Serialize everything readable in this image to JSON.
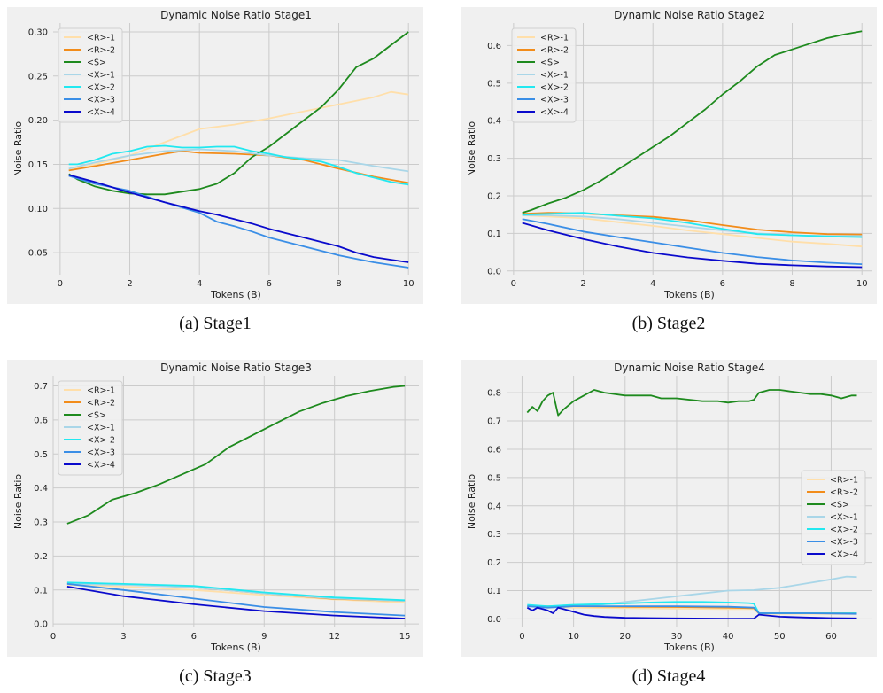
{
  "captions": [
    "(a) Stage1",
    "(b) Stage2",
    "(c) Stage3",
    "(d) Stage4"
  ],
  "series_styles": [
    {
      "name": "<R>-1",
      "color": "#ffdfaa"
    },
    {
      "name": "<R>-2",
      "color": "#f28c1a"
    },
    {
      "name": "<S>",
      "color": "#1e8a1e"
    },
    {
      "name": "<X>-1",
      "color": "#a9d6e8"
    },
    {
      "name": "<X>-2",
      "color": "#22e8f0"
    },
    {
      "name": "<X>-3",
      "color": "#3a8ee6"
    },
    {
      "name": "<X>-4",
      "color": "#0a0acc"
    }
  ],
  "chart_data": [
    {
      "type": "line",
      "title": "Dynamic Noise Ratio Stage1",
      "xlabel": "Tokens (B)",
      "ylabel": "Noise Ratio",
      "xlim": [
        -0.2,
        10.3
      ],
      "ylim": [
        0.025,
        0.31
      ],
      "xticks": [
        0,
        2,
        4,
        6,
        8,
        10
      ],
      "yticks": [
        0.05,
        0.1,
        0.15,
        0.2,
        0.25,
        0.3
      ],
      "ytick_labels": [
        "0.05",
        "0.10",
        "0.15",
        "0.20",
        "0.25",
        "0.30"
      ],
      "grid": true,
      "legend": "top-left",
      "series": [
        {
          "name": "<R>-1",
          "x": [
            0.25,
            1,
            2,
            3,
            4,
            5,
            6,
            7,
            8,
            9,
            9.5,
            10
          ],
          "y": [
            0.143,
            0.15,
            0.16,
            0.175,
            0.19,
            0.195,
            0.202,
            0.21,
            0.218,
            0.226,
            0.232,
            0.229
          ]
        },
        {
          "name": "<R>-2",
          "x": [
            0.25,
            1,
            2,
            3,
            3.5,
            4,
            5,
            6,
            7,
            8,
            9,
            10
          ],
          "y": [
            0.143,
            0.148,
            0.155,
            0.162,
            0.165,
            0.163,
            0.162,
            0.16,
            0.155,
            0.145,
            0.136,
            0.129
          ]
        },
        {
          "name": "<S>",
          "x": [
            0.25,
            0.5,
            1,
            1.5,
            2,
            2.5,
            3,
            3.5,
            4,
            4.5,
            5,
            5.5,
            6,
            6.5,
            7,
            7.5,
            8,
            8.5,
            9,
            9.5,
            10
          ],
          "y": [
            0.139,
            0.133,
            0.125,
            0.12,
            0.117,
            0.116,
            0.116,
            0.119,
            0.122,
            0.128,
            0.14,
            0.158,
            0.17,
            0.185,
            0.2,
            0.215,
            0.235,
            0.26,
            0.27,
            0.285,
            0.3
          ]
        },
        {
          "name": "<X>-1",
          "x": [
            0.25,
            1,
            2,
            3,
            4,
            5,
            6,
            7,
            8,
            9,
            10
          ],
          "y": [
            0.145,
            0.152,
            0.16,
            0.165,
            0.167,
            0.165,
            0.16,
            0.157,
            0.155,
            0.148,
            0.142
          ]
        },
        {
          "name": "<X>-2",
          "x": [
            0.25,
            0.5,
            1,
            1.5,
            2,
            2.5,
            3,
            3.5,
            4,
            4.5,
            5,
            5.5,
            6,
            6.5,
            7,
            7.5,
            8,
            8.5,
            9,
            9.5,
            10
          ],
          "y": [
            0.15,
            0.15,
            0.155,
            0.162,
            0.165,
            0.17,
            0.171,
            0.169,
            0.169,
            0.17,
            0.17,
            0.165,
            0.162,
            0.158,
            0.156,
            0.153,
            0.147,
            0.14,
            0.135,
            0.13,
            0.127
          ]
        },
        {
          "name": "<X>-3",
          "x": [
            0.25,
            1,
            2,
            3,
            4,
            4.5,
            5,
            5.5,
            6,
            6.5,
            7,
            7.5,
            8,
            8.5,
            9,
            9.5,
            10
          ],
          "y": [
            0.137,
            0.128,
            0.12,
            0.107,
            0.095,
            0.085,
            0.08,
            0.074,
            0.067,
            0.062,
            0.057,
            0.052,
            0.047,
            0.043,
            0.039,
            0.036,
            0.033
          ]
        },
        {
          "name": "<X>-4",
          "x": [
            0.25,
            1,
            2,
            3,
            4,
            4.5,
            5,
            5.5,
            6,
            6.5,
            7,
            7.5,
            8,
            8.5,
            9,
            9.5,
            10
          ],
          "y": [
            0.138,
            0.13,
            0.118,
            0.107,
            0.097,
            0.093,
            0.088,
            0.083,
            0.077,
            0.072,
            0.067,
            0.062,
            0.057,
            0.05,
            0.045,
            0.042,
            0.039
          ]
        }
      ]
    },
    {
      "type": "line",
      "title": "Dynamic Noise Ratio Stage2",
      "xlabel": "Tokens (B)",
      "ylabel": "Noise Ratio",
      "xlim": [
        -0.2,
        10.3
      ],
      "ylim": [
        -0.01,
        0.66
      ],
      "xticks": [
        0,
        2,
        4,
        6,
        8,
        10
      ],
      "yticks": [
        0.0,
        0.1,
        0.2,
        0.3,
        0.4,
        0.5,
        0.6
      ],
      "ytick_labels": [
        "0.0",
        "0.1",
        "0.2",
        "0.3",
        "0.4",
        "0.5",
        "0.6"
      ],
      "grid": true,
      "legend": "top-left",
      "series": [
        {
          "name": "<R>-1",
          "x": [
            0.25,
            1,
            2,
            3,
            4,
            5,
            6,
            7,
            8,
            9,
            10
          ],
          "y": [
            0.148,
            0.145,
            0.14,
            0.13,
            0.12,
            0.108,
            0.098,
            0.088,
            0.078,
            0.072,
            0.065
          ]
        },
        {
          "name": "<R>-2",
          "x": [
            0.25,
            1,
            2,
            3,
            4,
            5,
            6,
            7,
            8,
            9,
            10
          ],
          "y": [
            0.152,
            0.155,
            0.153,
            0.148,
            0.144,
            0.135,
            0.122,
            0.11,
            0.103,
            0.098,
            0.097
          ]
        },
        {
          "name": "<S>",
          "x": [
            0.25,
            0.5,
            1,
            1.5,
            2,
            2.5,
            3,
            3.5,
            4,
            4.5,
            5,
            5.5,
            6,
            6.5,
            7,
            7.5,
            8,
            8.5,
            9,
            9.5,
            10
          ],
          "y": [
            0.155,
            0.162,
            0.18,
            0.195,
            0.215,
            0.24,
            0.27,
            0.3,
            0.33,
            0.36,
            0.395,
            0.43,
            0.47,
            0.505,
            0.545,
            0.575,
            0.59,
            0.605,
            0.62,
            0.63,
            0.638
          ]
        },
        {
          "name": "<X>-1",
          "x": [
            0.25,
            1,
            2,
            3,
            4,
            5,
            6,
            7,
            8,
            9,
            10
          ],
          "y": [
            0.148,
            0.148,
            0.145,
            0.138,
            0.128,
            0.118,
            0.108,
            0.1,
            0.095,
            0.093,
            0.093
          ]
        },
        {
          "name": "<X>-2",
          "x": [
            0.25,
            1,
            2,
            3,
            4,
            5,
            6,
            7,
            8,
            9,
            10
          ],
          "y": [
            0.15,
            0.152,
            0.155,
            0.147,
            0.14,
            0.128,
            0.112,
            0.098,
            0.095,
            0.092,
            0.09
          ]
        },
        {
          "name": "<X>-3",
          "x": [
            0.25,
            1,
            2,
            3,
            4,
            5,
            6,
            7,
            8,
            9,
            10
          ],
          "y": [
            0.138,
            0.125,
            0.105,
            0.09,
            0.076,
            0.062,
            0.048,
            0.037,
            0.028,
            0.022,
            0.018
          ]
        },
        {
          "name": "<X>-4",
          "x": [
            0.25,
            1,
            2,
            3,
            4,
            5,
            6,
            7,
            8,
            9,
            10
          ],
          "y": [
            0.128,
            0.108,
            0.085,
            0.065,
            0.048,
            0.036,
            0.027,
            0.019,
            0.015,
            0.012,
            0.01
          ]
        }
      ]
    },
    {
      "type": "line",
      "title": "Dynamic Noise Ratio Stage3",
      "xlabel": "Tokens (B)",
      "ylabel": "Noise Ratio",
      "xlim": [
        0,
        15.6
      ],
      "ylim": [
        -0.01,
        0.73
      ],
      "xticks": [
        0,
        3,
        6,
        9,
        12,
        15
      ],
      "yticks": [
        0.0,
        0.1,
        0.2,
        0.3,
        0.4,
        0.5,
        0.6,
        0.7
      ],
      "ytick_labels": [
        "0.0",
        "0.1",
        "0.2",
        "0.3",
        "0.4",
        "0.5",
        "0.6",
        "0.7"
      ],
      "grid": true,
      "legend": "top-left",
      "series": [
        {
          "name": "<R>-1",
          "x": [
            0.6,
            3,
            6,
            9,
            12,
            15
          ],
          "y": [
            0.115,
            0.11,
            0.1,
            0.085,
            0.072,
            0.063
          ]
        },
        {
          "name": "<R>-2",
          "x": [
            0.6,
            3,
            6,
            9,
            12,
            15
          ],
          "y": [
            0.12,
            0.117,
            0.108,
            0.09,
            0.074,
            0.068
          ]
        },
        {
          "name": "<S>",
          "x": [
            0.6,
            1.5,
            2.5,
            3.5,
            4.5,
            5.5,
            6.5,
            7.5,
            8.5,
            9.5,
            10.5,
            11.5,
            12.5,
            13.5,
            14.5,
            15
          ],
          "y": [
            0.295,
            0.32,
            0.365,
            0.385,
            0.41,
            0.44,
            0.47,
            0.52,
            0.555,
            0.59,
            0.625,
            0.65,
            0.67,
            0.685,
            0.697,
            0.7
          ]
        },
        {
          "name": "<X>-1",
          "x": [
            0.6,
            3,
            6,
            9,
            12,
            15
          ],
          "y": [
            0.118,
            0.115,
            0.108,
            0.09,
            0.075,
            0.068
          ]
        },
        {
          "name": "<X>-2",
          "x": [
            0.6,
            3,
            6,
            9,
            12,
            15
          ],
          "y": [
            0.122,
            0.118,
            0.112,
            0.093,
            0.078,
            0.07
          ]
        },
        {
          "name": "<X>-3",
          "x": [
            0.6,
            3,
            6,
            9,
            12,
            15
          ],
          "y": [
            0.118,
            0.1,
            0.075,
            0.05,
            0.035,
            0.025
          ]
        },
        {
          "name": "<X>-4",
          "x": [
            0.6,
            3,
            6,
            9,
            12,
            15
          ],
          "y": [
            0.11,
            0.082,
            0.058,
            0.038,
            0.025,
            0.016
          ]
        }
      ]
    },
    {
      "type": "line",
      "title": "Dynamic Noise Ratio Stage4",
      "xlabel": "Tokens (B)",
      "ylabel": "Noise Ratio",
      "xlim": [
        -3,
        68
      ],
      "ylim": [
        -0.03,
        0.86
      ],
      "xticks": [
        0,
        10,
        20,
        30,
        40,
        50,
        60
      ],
      "yticks": [
        0.0,
        0.1,
        0.2,
        0.3,
        0.4,
        0.5,
        0.6,
        0.7,
        0.8
      ],
      "ytick_labels": [
        "0.0",
        "0.1",
        "0.2",
        "0.3",
        "0.4",
        "0.5",
        "0.6",
        "0.7",
        "0.8"
      ],
      "grid": true,
      "legend": "center-right",
      "series": [
        {
          "name": "<R>-1",
          "x": [
            1,
            10,
            20,
            30,
            40,
            45,
            46,
            55,
            65
          ],
          "y": [
            0.045,
            0.04,
            0.038,
            0.036,
            0.035,
            0.035,
            0.018,
            0.018,
            0.018
          ]
        },
        {
          "name": "<R>-2",
          "x": [
            1,
            10,
            20,
            30,
            40,
            45,
            46,
            55,
            65
          ],
          "y": [
            0.045,
            0.045,
            0.043,
            0.042,
            0.04,
            0.038,
            0.02,
            0.02,
            0.02
          ]
        },
        {
          "name": "<S>",
          "x": [
            1,
            2,
            3,
            4,
            5,
            6,
            7,
            8,
            10,
            12,
            14,
            16,
            20,
            25,
            27,
            30,
            35,
            38,
            40,
            42,
            44,
            45,
            46,
            48,
            50,
            52,
            54,
            56,
            58,
            60,
            62,
            64,
            65
          ],
          "y": [
            0.73,
            0.75,
            0.735,
            0.77,
            0.79,
            0.8,
            0.72,
            0.74,
            0.77,
            0.79,
            0.81,
            0.8,
            0.79,
            0.79,
            0.78,
            0.78,
            0.77,
            0.77,
            0.765,
            0.77,
            0.77,
            0.775,
            0.8,
            0.81,
            0.81,
            0.805,
            0.8,
            0.795,
            0.795,
            0.79,
            0.78,
            0.79,
            0.79
          ]
        },
        {
          "name": "<X>-1",
          "x": [
            1,
            5,
            10,
            15,
            20,
            25,
            30,
            35,
            40,
            45,
            50,
            55,
            60,
            63,
            65
          ],
          "y": [
            0.045,
            0.043,
            0.045,
            0.05,
            0.06,
            0.07,
            0.08,
            0.09,
            0.1,
            0.102,
            0.11,
            0.125,
            0.14,
            0.15,
            0.148
          ]
        },
        {
          "name": "<X>-2",
          "x": [
            1,
            5,
            10,
            15,
            20,
            25,
            30,
            35,
            40,
            44,
            45,
            46,
            55,
            65
          ],
          "y": [
            0.05,
            0.045,
            0.05,
            0.052,
            0.055,
            0.058,
            0.06,
            0.06,
            0.058,
            0.056,
            0.054,
            0.02,
            0.02,
            0.02
          ]
        },
        {
          "name": "<X>-3",
          "x": [
            1,
            5,
            10,
            15,
            20,
            30,
            40,
            45,
            46,
            55,
            65
          ],
          "y": [
            0.045,
            0.04,
            0.045,
            0.045,
            0.045,
            0.045,
            0.043,
            0.04,
            0.02,
            0.02,
            0.018
          ]
        },
        {
          "name": "<X>-4",
          "x": [
            1,
            2,
            3,
            4,
            5,
            6,
            7,
            8,
            10,
            12,
            14,
            16,
            20,
            25,
            30,
            40,
            45,
            46,
            50,
            55,
            60,
            65
          ],
          "y": [
            0.04,
            0.03,
            0.04,
            0.035,
            0.03,
            0.02,
            0.04,
            0.035,
            0.025,
            0.015,
            0.01,
            0.007,
            0.004,
            0.003,
            0.002,
            0.001,
            0.001,
            0.015,
            0.008,
            0.005,
            0.003,
            0.002
          ]
        }
      ]
    }
  ]
}
